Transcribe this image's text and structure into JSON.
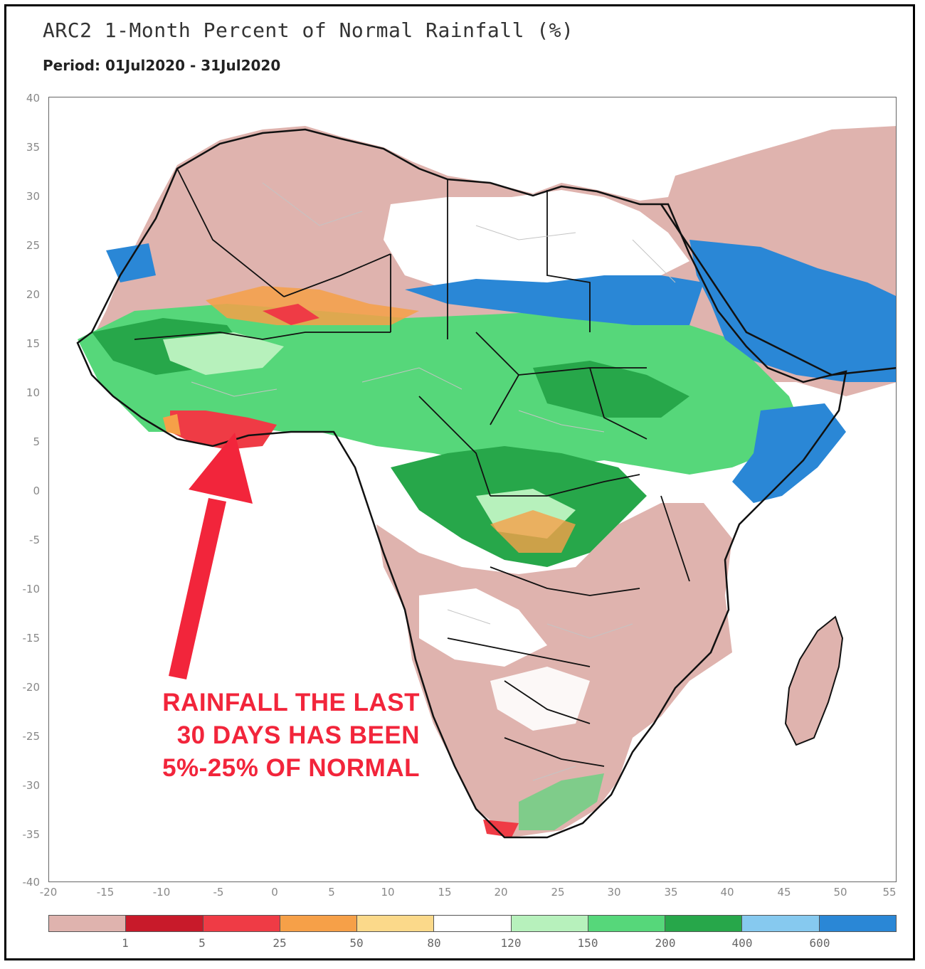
{
  "title": "ARC2 1-Month Percent of Normal Rainfall (%)",
  "period": "Period: 01Jul2020 - 31Jul2020",
  "axes": {
    "y_ticks": [
      "40",
      "35",
      "30",
      "25",
      "20",
      "15",
      "10",
      "5",
      "0",
      "-5",
      "-10",
      "-15",
      "-20",
      "-25",
      "-30",
      "-35",
      "-40"
    ],
    "x_ticks": [
      "-20",
      "-15",
      "-10",
      "-5",
      "0",
      "5",
      "10",
      "15",
      "20",
      "25",
      "30",
      "35",
      "40",
      "45",
      "50",
      "55"
    ]
  },
  "legend": {
    "colors": [
      "#dfb3ae",
      "#c81a2a",
      "#ef3b45",
      "#f6a048",
      "#fbd98a",
      "#ffffff",
      "#b7f1bc",
      "#56d77a",
      "#27a74a",
      "#86c9ef",
      "#2a87d6"
    ],
    "labels": [
      "1",
      "5",
      "25",
      "50",
      "80",
      "120",
      "150",
      "200",
      "400",
      "600"
    ]
  },
  "annotation": {
    "lines": [
      "RAINFALL THE LAST",
      "30 DAYS HAS BEEN",
      "5%-25% OF NORMAL"
    ],
    "color": "#f2253b"
  },
  "map": {
    "region": "Africa",
    "lat_range": [
      -40,
      40
    ],
    "lon_range": [
      -20,
      55
    ],
    "colors": {
      "below_normal": "#dfb3ae",
      "very_dry": "#ef3b45",
      "dry": "#f6a048",
      "near_normal": "#ffffff",
      "wet": "#56d77a",
      "very_wet": "#27a74a",
      "extreme": "#2a87d6",
      "border": "#111111",
      "admin_border": "#bbbbbb"
    }
  }
}
